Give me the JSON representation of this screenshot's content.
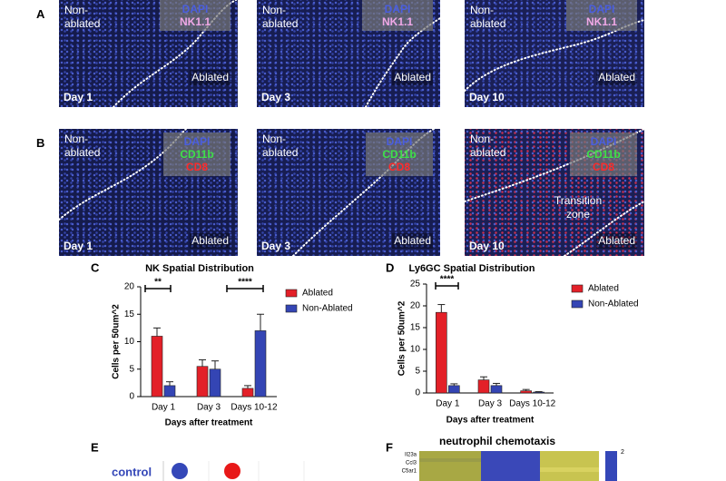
{
  "panels": [
    {
      "label": "A",
      "images": [
        {
          "top": "Non-ablated",
          "bottom": "Ablated",
          "day": "Day 1",
          "markers": [
            "DAPI",
            "NK1.1"
          ],
          "marker_colors": [
            "#4a5ee0",
            "#f0a8e6"
          ]
        },
        {
          "top": "Non-ablated",
          "bottom": "Ablated",
          "day": "Day 3",
          "markers": [
            "DAPI",
            "NK1.1"
          ],
          "marker_colors": [
            "#4a5ee0",
            "#f0a8e6"
          ]
        },
        {
          "top": "Non-ablated",
          "bottom": "Ablated",
          "day": "Day 10",
          "markers": [
            "DAPI",
            "NK1.1"
          ],
          "marker_colors": [
            "#4a5ee0",
            "#f0a8e6"
          ]
        }
      ]
    },
    {
      "label": "B",
      "images": [
        {
          "top": "Non-ablated",
          "bottom": "Ablated",
          "day": "Day 1",
          "markers": [
            "DAPI",
            "CD11b",
            "CD8"
          ],
          "marker_colors": [
            "#4a5ee0",
            "#3ee048",
            "#ff2a2a"
          ]
        },
        {
          "top": "Non-ablated",
          "bottom": "Ablated",
          "day": "Day 3",
          "markers": [
            "DAPI",
            "CD11b",
            "CD8"
          ],
          "marker_colors": [
            "#4a5ee0",
            "#3ee048",
            "#ff2a2a"
          ]
        },
        {
          "top": "Non-ablated",
          "bottom": "Ablated",
          "middle": "Transition zone",
          "day": "Day 10",
          "markers": [
            "DAPI",
            "CD11b",
            "CD8"
          ],
          "marker_colors": [
            "#4a5ee0",
            "#3ee048",
            "#ff2a2a"
          ]
        }
      ]
    }
  ],
  "chart_data": [
    {
      "type": "bar",
      "label": "C",
      "title": "NK Spatial Distribution",
      "x_label": "Days after treatment",
      "y_label": "Cells per 50um^2",
      "categories": [
        "Day 1",
        "Day 3",
        "Days 10-12"
      ],
      "series": [
        {
          "name": "Ablated",
          "color": "#e32028",
          "values": [
            11,
            5.5,
            1.5
          ],
          "errors": [
            1.5,
            1.2,
            0.5
          ]
        },
        {
          "name": "Non-Ablated",
          "color": "#3445b4",
          "values": [
            2,
            5,
            12
          ],
          "errors": [
            0.7,
            1.5,
            3
          ]
        }
      ],
      "ylim": [
        0,
        20
      ],
      "yticks": [
        0,
        5,
        10,
        15,
        20
      ],
      "annotations": [
        "**",
        "****"
      ],
      "legend": "right"
    },
    {
      "type": "bar",
      "label": "D",
      "title": "Ly6GC Spatial Distribution",
      "x_label": "Days after treatment",
      "y_label": "Cells per 50um^2",
      "categories": [
        "Day 1",
        "Day 3",
        "Days 10-12"
      ],
      "series": [
        {
          "name": "Ablated",
          "color": "#e32028",
          "values": [
            18.5,
            3,
            0.5
          ],
          "errors": [
            1.8,
            0.7,
            0.3
          ]
        },
        {
          "name": "Non-Ablated",
          "color": "#3445b4",
          "values": [
            1.7,
            1.7,
            0.2
          ],
          "errors": [
            0.4,
            0.5,
            0.1
          ]
        }
      ],
      "ylim": [
        0,
        25
      ],
      "yticks": [
        0,
        5,
        10,
        15,
        20,
        25
      ],
      "annotations": [
        "****"
      ],
      "legend": "right"
    }
  ],
  "panel_E": {
    "label": "E",
    "rows": [
      "control"
    ]
  },
  "panel_F": {
    "label": "F",
    "title": "neutrophil chemotaxis",
    "genes": [
      "Il23a",
      "Ccl3",
      "C5ar1"
    ],
    "colorbar_ticks": [
      2
    ]
  }
}
